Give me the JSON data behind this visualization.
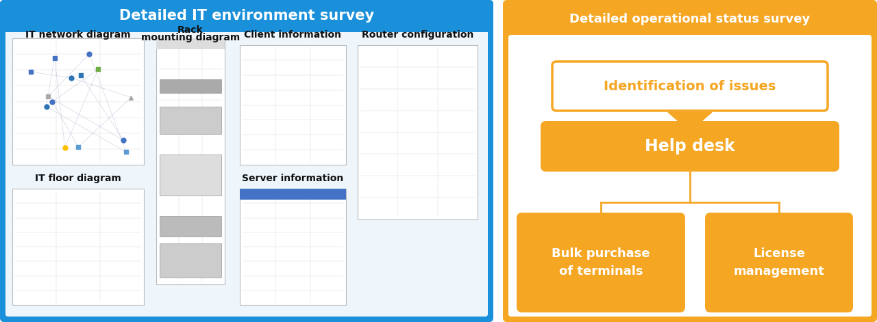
{
  "left_panel": {
    "bg_color": "#1a8fda",
    "inner_bg_color": "#ffffff",
    "title": "Detailed IT environment survey",
    "title_color": "#ffffff",
    "title_fontsize": 15,
    "border_color": "#1a8fda"
  },
  "right_panel": {
    "bg_color": "#f5a623",
    "inner_bg_color": "#ffffff",
    "title": "Detailed operational status survey",
    "title_color": "#ffffff",
    "title_fontsize": 13,
    "border_color": "#f5a623",
    "id_box_color": "#ffffff",
    "id_box_edge": "#f5a623",
    "id_text_color": "#f5a623",
    "helpdesk_color": "#f5a623",
    "helpdesk_text_color": "#ffffff",
    "bottom_box_color": "#f5a623",
    "bottom_text_color": "#ffffff",
    "arrow_color": "#f5a623",
    "line_color": "#f5a623"
  },
  "labels": {
    "network": "IT network diagram",
    "rack": "Rack\nmounting diagram",
    "client": "Client information",
    "router": "Router configuration",
    "floor": "IT floor diagram",
    "server": "Server information"
  }
}
